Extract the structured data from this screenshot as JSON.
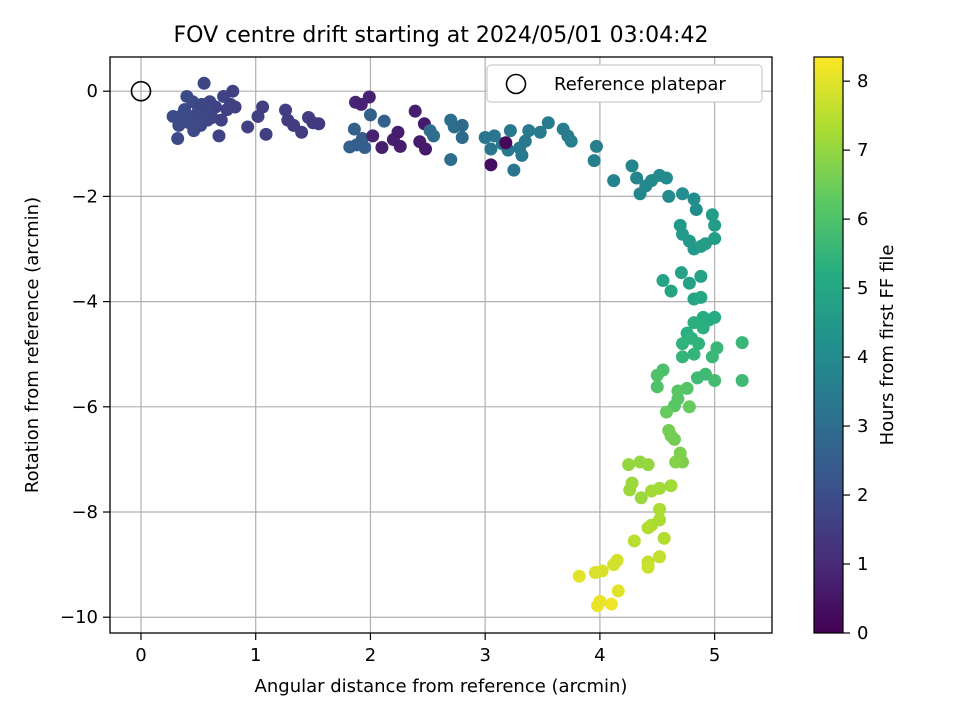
{
  "chart_data": {
    "type": "scatter",
    "title": "FOV centre drift starting at 2024/05/01 03:04:42",
    "xlabel": "Angular distance from reference (arcmin)",
    "ylabel": "Rotation from reference (arcmin)",
    "xlim": [
      -0.27,
      5.5
    ],
    "ylim": [
      -10.3,
      0.65
    ],
    "xticks": [
      0,
      1,
      2,
      3,
      4,
      5
    ],
    "yticks": [
      0,
      -2,
      -4,
      -6,
      -8,
      -10
    ],
    "x_tick_labels": [
      "0",
      "1",
      "2",
      "3",
      "4",
      "5"
    ],
    "y_tick_labels": [
      "0",
      "−2",
      "−4",
      "−6",
      "−8",
      "−10"
    ],
    "grid": true,
    "colormap": "viridis",
    "colorbar": {
      "label": "Hours from first FF file",
      "range": [
        0,
        8.35
      ],
      "ticks": [
        0,
        1,
        2,
        3,
        4,
        5,
        6,
        7,
        8
      ],
      "tick_labels": [
        "0",
        "1",
        "2",
        "3",
        "4",
        "5",
        "6",
        "7",
        "8"
      ]
    },
    "legend": {
      "entries": [
        {
          "label": "Reference platepar",
          "marker": "open-circle"
        }
      ],
      "position": "upper right"
    },
    "reference_point": {
      "x": 0,
      "y": 0
    },
    "points": [
      [
        0.28,
        -0.48,
        1.9
      ],
      [
        0.32,
        -0.9,
        1.9
      ],
      [
        0.35,
        -0.55,
        1.9
      ],
      [
        0.38,
        -0.35,
        1.9
      ],
      [
        0.4,
        -0.1,
        1.9
      ],
      [
        0.42,
        -0.6,
        1.85
      ],
      [
        0.45,
        -0.2,
        1.9
      ],
      [
        0.46,
        -0.75,
        1.85
      ],
      [
        0.48,
        -0.45,
        1.8
      ],
      [
        0.5,
        -0.3,
        1.85
      ],
      [
        0.52,
        -0.65,
        1.8
      ],
      [
        0.55,
        0.15,
        1.8
      ],
      [
        0.56,
        -0.4,
        1.8
      ],
      [
        0.58,
        -0.55,
        1.8
      ],
      [
        0.6,
        -0.2,
        1.75
      ],
      [
        0.62,
        -0.5,
        1.75
      ],
      [
        0.65,
        -0.3,
        1.7
      ],
      [
        0.68,
        -0.85,
        1.7
      ],
      [
        0.7,
        -0.55,
        1.7
      ],
      [
        0.72,
        -0.1,
        1.7
      ],
      [
        0.75,
        -0.35,
        1.65
      ],
      [
        0.78,
        -0.25,
        1.65
      ],
      [
        0.8,
        0.0,
        1.6
      ],
      [
        0.82,
        -0.3,
        1.6
      ],
      [
        0.33,
        -0.65,
        1.9
      ],
      [
        0.36,
        -0.45,
        1.9
      ],
      [
        0.44,
        -0.55,
        1.85
      ],
      [
        0.5,
        -0.6,
        1.85
      ],
      [
        0.53,
        -0.25,
        1.8
      ],
      [
        0.58,
        -0.4,
        1.8
      ],
      [
        0.93,
        -0.68,
        1.6
      ],
      [
        1.02,
        -0.48,
        1.6
      ],
      [
        1.06,
        -0.3,
        1.55
      ],
      [
        1.09,
        -0.82,
        1.55
      ],
      [
        1.26,
        -0.36,
        1.5
      ],
      [
        1.28,
        -0.55,
        1.5
      ],
      [
        1.33,
        -0.65,
        1.5
      ],
      [
        1.4,
        -0.78,
        1.5
      ],
      [
        1.46,
        -0.5,
        1.5
      ],
      [
        1.5,
        -0.6,
        1.45
      ],
      [
        1.55,
        -0.62,
        1.45
      ],
      [
        1.82,
        -1.06,
        2.6
      ],
      [
        1.86,
        -0.72,
        2.6
      ],
      [
        1.88,
        -1.02,
        2.55
      ],
      [
        1.93,
        -0.9,
        2.55
      ],
      [
        1.95,
        -1.07,
        2.5
      ],
      [
        2.0,
        -0.45,
        2.6
      ],
      [
        2.12,
        -0.57,
        2.6
      ],
      [
        1.87,
        -0.21,
        0.9
      ],
      [
        1.92,
        -0.25,
        0.85
      ],
      [
        1.99,
        -0.11,
        0.8
      ],
      [
        2.02,
        -0.85,
        0.8
      ],
      [
        2.1,
        -1.07,
        0.75
      ],
      [
        2.2,
        -0.92,
        0.75
      ],
      [
        2.24,
        -0.78,
        0.7
      ],
      [
        2.26,
        -1.05,
        0.7
      ],
      [
        2.39,
        -0.38,
        0.7
      ],
      [
        2.43,
        -0.96,
        0.65
      ],
      [
        2.47,
        -0.62,
        0.6
      ],
      [
        2.48,
        -1.1,
        0.6
      ],
      [
        2.52,
        -0.75,
        3.0
      ],
      [
        2.55,
        -0.85,
        3.0
      ],
      [
        2.7,
        -0.55,
        3.0
      ],
      [
        2.73,
        -0.68,
        3.0
      ],
      [
        2.7,
        -1.3,
        3.0
      ],
      [
        2.8,
        -0.65,
        2.9
      ],
      [
        2.8,
        -0.88,
        2.9
      ],
      [
        3.0,
        -0.88,
        3.3
      ],
      [
        3.05,
        -1.1,
        3.3
      ],
      [
        3.08,
        -0.85,
        3.3
      ],
      [
        3.15,
        -1.0,
        3.4
      ],
      [
        3.2,
        -1.12,
        3.4
      ],
      [
        3.22,
        -0.75,
        3.4
      ],
      [
        3.25,
        -1.5,
        3.3
      ],
      [
        3.3,
        -1.08,
        3.4
      ],
      [
        3.32,
        -1.22,
        3.4
      ],
      [
        3.35,
        -0.95,
        3.4
      ],
      [
        3.38,
        -0.75,
        3.45
      ],
      [
        3.48,
        -0.78,
        3.5
      ],
      [
        3.55,
        -0.6,
        3.5
      ],
      [
        3.68,
        -0.72,
        3.5
      ],
      [
        3.72,
        -0.85,
        3.5
      ],
      [
        3.75,
        -0.95,
        3.6
      ],
      [
        3.05,
        -1.4,
        0.3
      ],
      [
        3.18,
        -0.98,
        0.2
      ],
      [
        3.97,
        -1.05,
        3.6
      ],
      [
        3.95,
        -1.32,
        3.6
      ],
      [
        4.12,
        -1.7,
        3.7
      ],
      [
        4.28,
        -1.42,
        3.8
      ],
      [
        4.32,
        -1.65,
        3.8
      ],
      [
        4.35,
        -1.95,
        3.8
      ],
      [
        4.4,
        -1.8,
        3.9
      ],
      [
        4.45,
        -1.7,
        3.9
      ],
      [
        4.52,
        -1.6,
        4.0
      ],
      [
        4.58,
        -1.65,
        4.0
      ],
      [
        4.6,
        -2.0,
        4.0
      ],
      [
        4.72,
        -1.95,
        4.1
      ],
      [
        4.82,
        -2.05,
        4.1
      ],
      [
        4.84,
        -2.25,
        4.1
      ],
      [
        4.7,
        -2.55,
        4.5
      ],
      [
        4.72,
        -2.72,
        4.5
      ],
      [
        4.78,
        -2.85,
        4.5
      ],
      [
        4.82,
        -3.0,
        4.5
      ],
      [
        4.88,
        -2.95,
        4.6
      ],
      [
        4.92,
        -2.9,
        4.6
      ],
      [
        4.98,
        -2.35,
        4.6
      ],
      [
        5.0,
        -2.55,
        4.6
      ],
      [
        5.0,
        -2.8,
        4.6
      ],
      [
        4.71,
        -3.45,
        4.8
      ],
      [
        4.78,
        -3.65,
        4.8
      ],
      [
        4.88,
        -3.52,
        4.8
      ],
      [
        4.55,
        -3.6,
        4.9
      ],
      [
        4.62,
        -3.8,
        4.9
      ],
      [
        4.82,
        -3.95,
        4.9
      ],
      [
        4.88,
        -3.92,
        5.0
      ],
      [
        4.9,
        -4.3,
        5.2
      ],
      [
        4.95,
        -4.35,
        5.2
      ],
      [
        5.0,
        -4.3,
        5.2
      ],
      [
        4.82,
        -4.4,
        5.3
      ],
      [
        4.76,
        -4.6,
        5.3
      ],
      [
        4.72,
        -4.8,
        5.4
      ],
      [
        4.8,
        -4.7,
        5.4
      ],
      [
        4.86,
        -4.8,
        5.4
      ],
      [
        4.9,
        -4.5,
        5.3
      ],
      [
        4.82,
        -5.0,
        5.5
      ],
      [
        4.72,
        -5.05,
        5.5
      ],
      [
        4.98,
        -5.05,
        5.6
      ],
      [
        5.02,
        -4.88,
        5.6
      ],
      [
        5.24,
        -4.78,
        5.6
      ],
      [
        5.24,
        -5.5,
        5.7
      ],
      [
        4.92,
        -5.38,
        5.7
      ],
      [
        4.85,
        -5.45,
        5.7
      ],
      [
        5.0,
        -5.5,
        5.8
      ],
      [
        4.55,
        -5.3,
        5.9
      ],
      [
        4.5,
        -5.4,
        6.0
      ],
      [
        4.5,
        -5.62,
        6.0
      ],
      [
        4.76,
        -5.65,
        6.1
      ],
      [
        4.68,
        -5.7,
        6.2
      ],
      [
        4.68,
        -5.85,
        6.2
      ],
      [
        4.65,
        -5.98,
        6.2
      ],
      [
        4.78,
        -6.0,
        6.4
      ],
      [
        4.58,
        -6.1,
        6.4
      ],
      [
        4.6,
        -6.45,
        6.6
      ],
      [
        4.62,
        -6.55,
        6.6
      ],
      [
        4.65,
        -6.62,
        6.6
      ],
      [
        4.7,
        -6.88,
        6.7
      ],
      [
        4.72,
        -7.05,
        6.7
      ],
      [
        4.66,
        -7.05,
        6.8
      ],
      [
        4.25,
        -7.1,
        7.0
      ],
      [
        4.35,
        -7.05,
        7.0
      ],
      [
        4.42,
        -7.1,
        7.0
      ],
      [
        4.28,
        -7.45,
        7.1
      ],
      [
        4.26,
        -7.58,
        7.1
      ],
      [
        4.36,
        -7.73,
        7.1
      ],
      [
        4.45,
        -7.6,
        7.2
      ],
      [
        4.52,
        -7.55,
        7.2
      ],
      [
        4.62,
        -7.5,
        7.2
      ],
      [
        4.52,
        -7.95,
        7.3
      ],
      [
        4.52,
        -8.15,
        7.3
      ],
      [
        4.45,
        -8.25,
        7.3
      ],
      [
        4.42,
        -8.3,
        7.4
      ],
      [
        4.56,
        -8.5,
        7.4
      ],
      [
        4.3,
        -8.55,
        7.5
      ],
      [
        4.52,
        -8.85,
        7.6
      ],
      [
        4.42,
        -8.95,
        7.6
      ],
      [
        4.42,
        -9.05,
        7.7
      ],
      [
        4.15,
        -8.92,
        7.8
      ],
      [
        4.12,
        -9.0,
        7.8
      ],
      [
        4.02,
        -9.12,
        7.9
      ],
      [
        3.96,
        -9.15,
        7.9
      ],
      [
        3.82,
        -9.22,
        8.0
      ],
      [
        4.16,
        -9.5,
        8.0
      ],
      [
        4.0,
        -9.7,
        8.1
      ],
      [
        3.98,
        -9.78,
        8.1
      ],
      [
        4.1,
        -9.75,
        8.2
      ]
    ]
  }
}
